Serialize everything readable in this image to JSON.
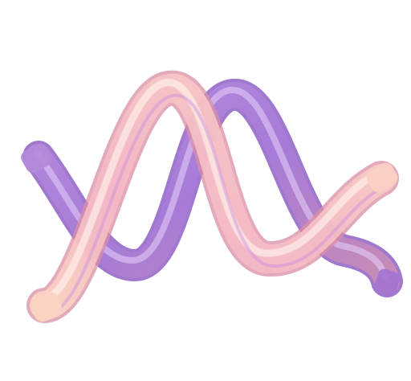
{
  "image": {
    "background_color": "#ffffff",
    "subject_icon": "glossy-wavy-ribbon-icon",
    "colors": {
      "lavender": "#c9a6ee",
      "violet": "#9a6ad6",
      "pink": "#f3b5c8",
      "peach": "#fcd3bf",
      "rose": "#d98ea6"
    }
  }
}
